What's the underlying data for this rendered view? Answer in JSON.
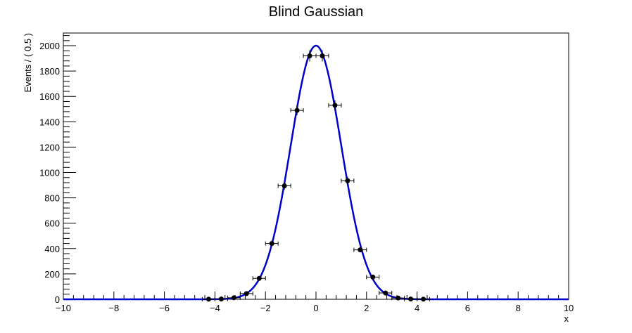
{
  "chart_data": {
    "type": "scatter",
    "title": "Blind Gaussian",
    "xlabel": "x",
    "ylabel": "Events / ( 0.5 )",
    "xlim": [
      -10,
      10
    ],
    "ylim": [
      0,
      2100
    ],
    "x_ticks": [
      -10,
      -8,
      -6,
      -4,
      -2,
      0,
      2,
      4,
      6,
      8,
      10
    ],
    "y_ticks": [
      0,
      200,
      400,
      600,
      800,
      1000,
      1200,
      1400,
      1600,
      1800,
      2000
    ],
    "grid": false,
    "legend": "none",
    "series": [
      {
        "type": "scatter",
        "x": [
          -4.25,
          -3.75,
          -3.25,
          -2.75,
          -2.25,
          -1.75,
          -1.25,
          -0.75,
          -0.25,
          0.25,
          0.75,
          1.25,
          1.75,
          2.25,
          2.75,
          3.25,
          3.75,
          4.25
        ],
        "y": [
          1,
          2,
          12,
          45,
          165,
          440,
          895,
          1490,
          1920,
          1920,
          1530,
          935,
          390,
          175,
          50,
          10,
          2,
          1
        ],
        "color": "#000000"
      },
      {
        "type": "line",
        "function": "gaussian",
        "amplitude": 2000,
        "mean": 0,
        "sigma": 1,
        "color": "#0000cc"
      }
    ]
  }
}
